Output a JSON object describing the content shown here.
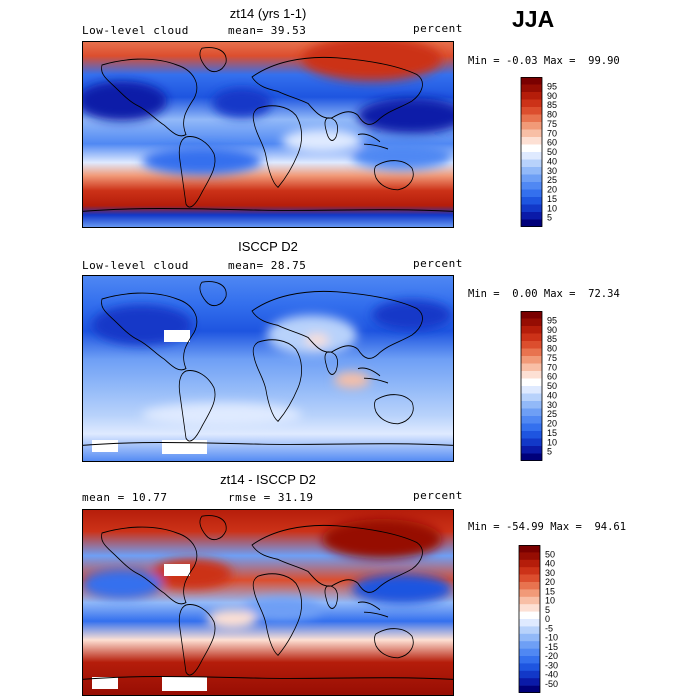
{
  "season": "JJA",
  "colormap_levels": [
    "#00007a",
    "#0a1aa8",
    "#1238c8",
    "#1e55e0",
    "#3470ee",
    "#5088f3",
    "#6e9ff5",
    "#92b9f8",
    "#b8d2fb",
    "#dfeaff",
    "#ffffff",
    "#fde0d4",
    "#f8bfa6",
    "#f19a78",
    "#e8734f",
    "#dc4e2e",
    "#cc3218",
    "#b51d0a",
    "#960d03",
    "#7a0000"
  ],
  "panels": [
    {
      "title": "zt14 (yrs 1-1)",
      "left_label": "Low-level cloud",
      "mean_label": "mean=",
      "mean_value": "39.53",
      "units": "percent",
      "min_label": "Min =",
      "min_value": "-0.03",
      "max_label": "Max =",
      "max_value": "99.90",
      "colorbar_labels": [
        "95",
        "90",
        "85",
        "80",
        "75",
        "70",
        "60",
        "50",
        "40",
        "30",
        "25",
        "20",
        "15",
        "10",
        "5"
      ]
    },
    {
      "title": "ISCCP D2",
      "left_label": "Low-level cloud",
      "mean_label": "mean=",
      "mean_value": "28.75",
      "units": "percent",
      "min_label": "Min =",
      "min_value": "0.00",
      "max_label": "Max =",
      "max_value": "72.34",
      "colorbar_labels": [
        "95",
        "90",
        "85",
        "80",
        "75",
        "70",
        "60",
        "50",
        "40",
        "30",
        "25",
        "20",
        "15",
        "10",
        "5"
      ]
    },
    {
      "title": "zt14 - ISCCP D2",
      "left_label": "",
      "mean_label": "mean =",
      "mean_value": "10.77",
      "rmse_label": "rmse =",
      "rmse_value": "31.19",
      "units": "percent",
      "min_label": "Min =",
      "min_value": "-54.99",
      "max_label": "Max =",
      "max_value": "94.61",
      "colorbar_labels": [
        "50",
        "40",
        "30",
        "20",
        "15",
        "10",
        "5",
        "0",
        "-5",
        "-10",
        "-15",
        "-20",
        "-30",
        "-40",
        "-50"
      ]
    }
  ],
  "chart_data": [
    {
      "type": "heatmap",
      "title": "zt14 (yrs 1-1)",
      "variable": "Low-level cloud",
      "units": "percent",
      "mean": 39.53,
      "min": -0.03,
      "max": 99.9,
      "contour_levels": [
        5,
        10,
        15,
        20,
        25,
        30,
        40,
        50,
        60,
        70,
        75,
        80,
        85,
        90,
        95
      ]
    },
    {
      "type": "heatmap",
      "title": "ISCCP D2",
      "variable": "Low-level cloud",
      "units": "percent",
      "mean": 28.75,
      "min": 0.0,
      "max": 72.34,
      "contour_levels": [
        5,
        10,
        15,
        20,
        25,
        30,
        40,
        50,
        60,
        70,
        75,
        80,
        85,
        90,
        95
      ]
    },
    {
      "type": "heatmap",
      "title": "zt14 - ISCCP D2",
      "units": "percent",
      "mean": 10.77,
      "rmse": 31.19,
      "min": -54.99,
      "max": 94.61,
      "contour_levels": [
        -50,
        -40,
        -30,
        -20,
        -15,
        -10,
        -5,
        0,
        5,
        10,
        15,
        20,
        30,
        40,
        50
      ]
    }
  ]
}
